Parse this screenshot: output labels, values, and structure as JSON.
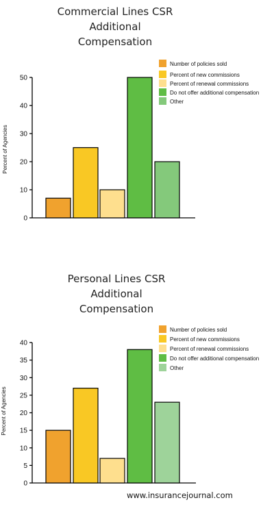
{
  "chart_data": [
    {
      "type": "bar",
      "title": [
        "Commercial Lines CSR",
        "Additional",
        "Compensation"
      ],
      "ylabel": "Percent of Agencies",
      "ylim": [
        0,
        50
      ],
      "yticks": [
        0,
        10,
        20,
        30,
        40,
        50
      ],
      "categories": [
        "Number of policies sold",
        "Percent of new commissions",
        "Percent of renewal commissions",
        "Do not offer additional compensation",
        "Other"
      ],
      "values": [
        7,
        25,
        10,
        50,
        20
      ],
      "colors": [
        "#f0a22e",
        "#f9c824",
        "#fedf8e",
        "#5fbd44",
        "#84c97b"
      ],
      "legend_position": "top-right"
    },
    {
      "type": "bar",
      "title": [
        "Personal Lines CSR",
        "Additional",
        "Compensation"
      ],
      "ylabel": "Percent of Agencies",
      "ylim": [
        0,
        40
      ],
      "yticks": [
        0,
        5,
        10,
        15,
        20,
        25,
        30,
        35,
        40
      ],
      "categories": [
        "Number of policies sold",
        "Percent of new commissions",
        "Percent of renewal commissions",
        "Do not offer additional compensation",
        "Other"
      ],
      "values": [
        15,
        27,
        7,
        38,
        23
      ],
      "colors": [
        "#f0a22e",
        "#f9c824",
        "#fedf8e",
        "#5fbd44",
        "#9ed39a"
      ],
      "legend_position": "top-right"
    }
  ],
  "footer": "www.insurancejournal.com"
}
